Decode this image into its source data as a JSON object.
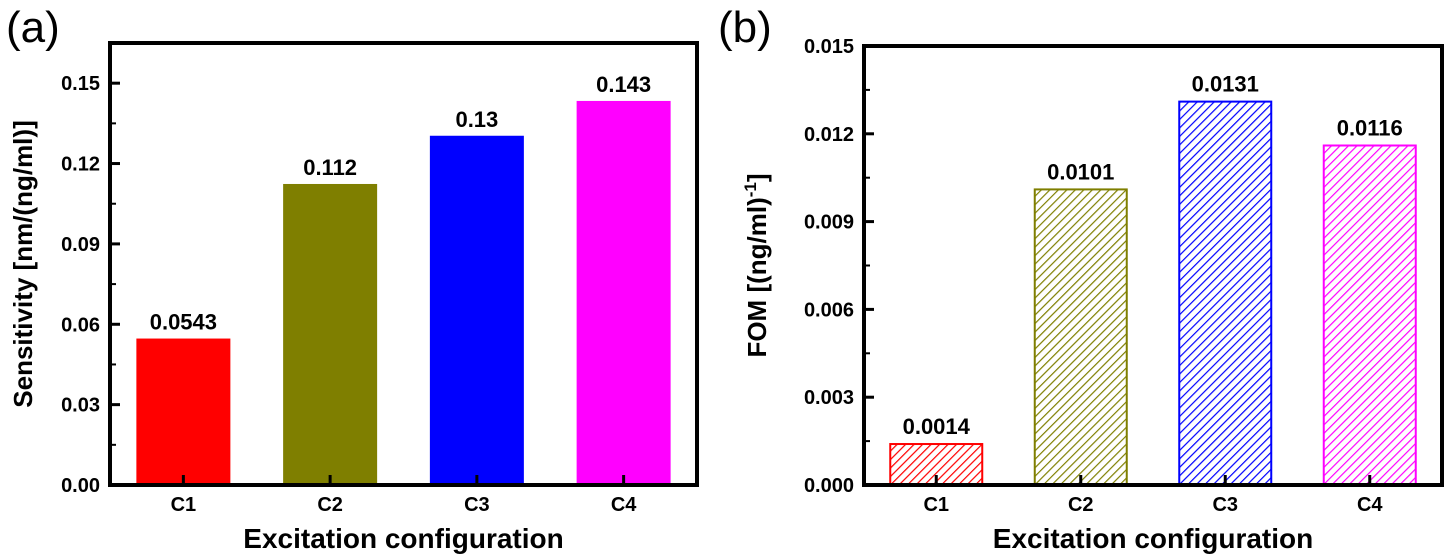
{
  "chart_data": [
    {
      "type": "bar",
      "panel_label": "(a)",
      "categories": [
        "C1",
        "C2",
        "C3",
        "C4"
      ],
      "values": [
        0.0543,
        0.112,
        0.13,
        0.143
      ],
      "value_labels": [
        "0.0543",
        "0.112",
        "0.13",
        "0.143"
      ],
      "colors": [
        "#ff0000",
        "#7f7f00",
        "#0000ff",
        "#ff00ff"
      ],
      "fill_style": "solid",
      "xlabel": "Excitation configuration",
      "ylabel": "Sensitivity [nm/(ng/ml)]",
      "ylim": [
        0,
        0.165
      ],
      "yticks": [
        0.0,
        0.03,
        0.06,
        0.09,
        0.12,
        0.15
      ],
      "ytick_labels": [
        "0.00",
        "0.03",
        "0.06",
        "0.09",
        "0.12",
        "0.15"
      ],
      "grid": false
    },
    {
      "type": "bar",
      "panel_label": "(b)",
      "categories": [
        "C1",
        "C2",
        "C3",
        "C4"
      ],
      "values": [
        0.0014,
        0.0101,
        0.0131,
        0.0116
      ],
      "value_labels": [
        "0.0014",
        "0.0101",
        "0.0131",
        "0.0116"
      ],
      "colors": [
        "#ff0000",
        "#7f7f00",
        "#0000ff",
        "#ff00ff"
      ],
      "fill_style": "hatched",
      "xlabel": "Excitation configuration",
      "ylabel_main": "FOM [(ng/ml)",
      "ylabel_sup": "-1",
      "ylabel_end": "]",
      "ylim": [
        0,
        0.015
      ],
      "yticks": [
        0.0,
        0.003,
        0.006,
        0.009,
        0.012,
        0.015
      ],
      "ytick_labels": [
        "0.000",
        "0.003",
        "0.006",
        "0.009",
        "0.012",
        "0.015"
      ],
      "grid": false
    }
  ]
}
